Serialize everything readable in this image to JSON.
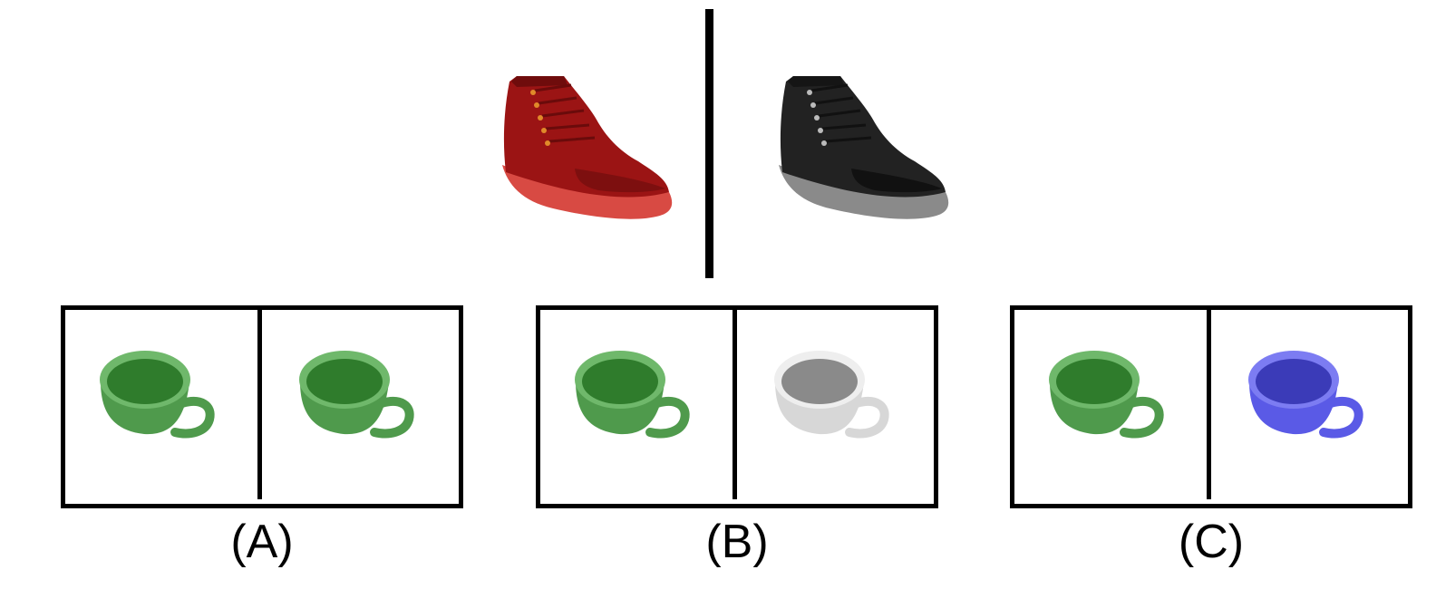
{
  "example": {
    "left_shoe": {
      "icon": "red-boot-icon",
      "color": "#9b1414",
      "sole_color": "#d84a43"
    },
    "right_shoe": {
      "icon": "black-boot-icon",
      "color": "#222222",
      "sole_color": "#8a8a8a"
    }
  },
  "options": [
    {
      "label": "(A)",
      "cups": [
        {
          "icon": "green-cup-icon",
          "color": "#4f9a4c",
          "dark": "#2f7c2c",
          "light": "#6fb86b"
        },
        {
          "icon": "green-cup-icon",
          "color": "#4f9a4c",
          "dark": "#2f7c2c",
          "light": "#6fb86b"
        }
      ]
    },
    {
      "label": "(B)",
      "cups": [
        {
          "icon": "green-cup-icon",
          "color": "#4f9a4c",
          "dark": "#2f7c2c",
          "light": "#6fb86b"
        },
        {
          "icon": "gray-cup-icon",
          "color": "#d7d7d7",
          "dark": "#8a8a8a",
          "light": "#eeeeee"
        }
      ]
    },
    {
      "label": "(C)",
      "cups": [
        {
          "icon": "green-cup-icon",
          "color": "#4f9a4c",
          "dark": "#2f7c2c",
          "light": "#6fb86b"
        },
        {
          "icon": "blue-cup-icon",
          "color": "#5a5ae6",
          "dark": "#3b3bb8",
          "light": "#7c7cf2"
        }
      ]
    }
  ]
}
